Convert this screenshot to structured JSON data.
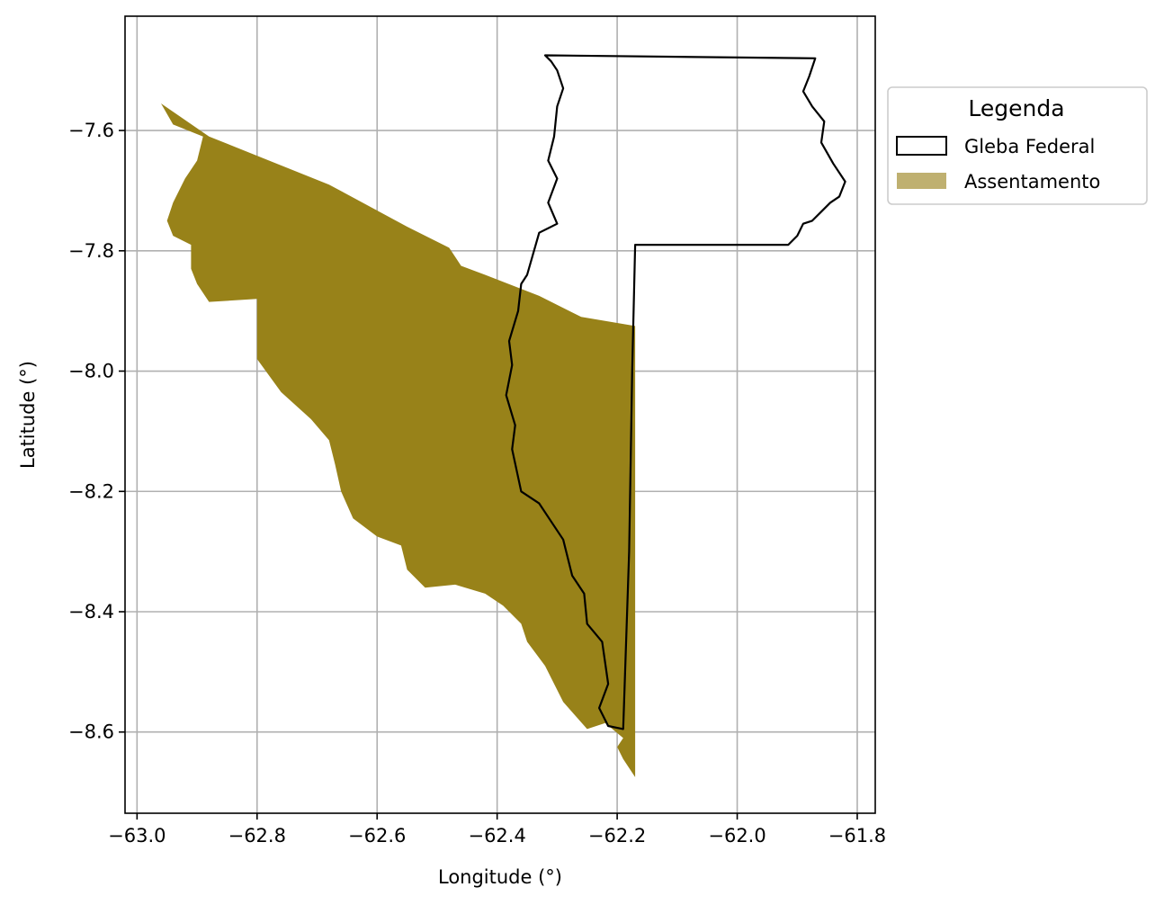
{
  "chart_data": {
    "type": "map",
    "xlabel": "Longitude (°)",
    "ylabel": "Latitude (°)",
    "xlim": [
      -63.02,
      -61.77
    ],
    "ylim": [
      -8.735,
      -7.41
    ],
    "grid": true,
    "xticks": [
      -63.0,
      -62.8,
      -62.6,
      -62.4,
      -62.2,
      -62.0,
      -61.8
    ],
    "xtick_labels": [
      "−63.0",
      "−62.8",
      "−62.6",
      "−62.4",
      "−62.2",
      "−62.0",
      "−61.8"
    ],
    "yticks": [
      -7.6,
      -7.8,
      -8.0,
      -8.2,
      -8.4,
      -8.6
    ],
    "ytick_labels": [
      "−7.6",
      "−7.8",
      "−8.0",
      "−8.2",
      "−8.4",
      "−8.6"
    ],
    "legend": {
      "title": "Legenda",
      "placement": "outside upper right",
      "entries": [
        {
          "label": "Gleba Federal",
          "style": "outline",
          "color": "#000000"
        },
        {
          "label": "Assentamento",
          "style": "fill",
          "color": "#bfb070"
        }
      ]
    },
    "layers": [
      {
        "name": "Assentamento",
        "fill": "#988219",
        "polygon": [
          [
            -62.96,
            -7.555
          ],
          [
            -62.88,
            -7.61
          ],
          [
            -62.78,
            -7.65
          ],
          [
            -62.68,
            -7.69
          ],
          [
            -62.55,
            -7.76
          ],
          [
            -62.48,
            -7.795
          ],
          [
            -62.46,
            -7.825
          ],
          [
            -62.42,
            -7.84
          ],
          [
            -62.33,
            -7.875
          ],
          [
            -62.26,
            -7.91
          ],
          [
            -62.17,
            -7.925
          ],
          [
            -62.17,
            -8.675
          ],
          [
            -62.19,
            -8.645
          ],
          [
            -62.2,
            -8.625
          ],
          [
            -62.19,
            -8.61
          ],
          [
            -62.22,
            -8.585
          ],
          [
            -62.25,
            -8.595
          ],
          [
            -62.29,
            -8.55
          ],
          [
            -62.32,
            -8.49
          ],
          [
            -62.35,
            -8.45
          ],
          [
            -62.36,
            -8.42
          ],
          [
            -62.39,
            -8.39
          ],
          [
            -62.42,
            -8.37
          ],
          [
            -62.47,
            -8.355
          ],
          [
            -62.52,
            -8.36
          ],
          [
            -62.55,
            -8.33
          ],
          [
            -62.56,
            -8.29
          ],
          [
            -62.6,
            -8.275
          ],
          [
            -62.64,
            -8.245
          ],
          [
            -62.66,
            -8.2
          ],
          [
            -62.67,
            -8.155
          ],
          [
            -62.68,
            -8.115
          ],
          [
            -62.71,
            -8.08
          ],
          [
            -62.76,
            -8.035
          ],
          [
            -62.8,
            -7.98
          ],
          [
            -62.8,
            -7.88
          ],
          [
            -62.88,
            -7.885
          ],
          [
            -62.9,
            -7.855
          ],
          [
            -62.91,
            -7.83
          ],
          [
            -62.91,
            -7.79
          ],
          [
            -62.94,
            -7.775
          ],
          [
            -62.95,
            -7.75
          ],
          [
            -62.94,
            -7.72
          ],
          [
            -62.92,
            -7.68
          ],
          [
            -62.9,
            -7.65
          ],
          [
            -62.89,
            -7.61
          ],
          [
            -62.94,
            -7.59
          ]
        ]
      },
      {
        "name": "Gleba Federal",
        "stroke": "#000000",
        "polygon": [
          [
            -62.32,
            -7.475
          ],
          [
            -61.87,
            -7.48
          ],
          [
            -61.88,
            -7.51
          ],
          [
            -61.89,
            -7.535
          ],
          [
            -61.875,
            -7.56
          ],
          [
            -61.855,
            -7.585
          ],
          [
            -61.86,
            -7.62
          ],
          [
            -61.84,
            -7.655
          ],
          [
            -61.82,
            -7.685
          ],
          [
            -61.83,
            -7.71
          ],
          [
            -61.845,
            -7.72
          ],
          [
            -61.86,
            -7.735
          ],
          [
            -61.875,
            -7.75
          ],
          [
            -61.89,
            -7.755
          ],
          [
            -61.9,
            -7.775
          ],
          [
            -61.915,
            -7.79
          ],
          [
            -62.17,
            -7.79
          ],
          [
            -62.175,
            -8.0
          ],
          [
            -62.18,
            -8.3
          ],
          [
            -62.19,
            -8.595
          ],
          [
            -62.215,
            -8.59
          ],
          [
            -62.23,
            -8.56
          ],
          [
            -62.215,
            -8.52
          ],
          [
            -62.225,
            -8.45
          ],
          [
            -62.25,
            -8.42
          ],
          [
            -62.255,
            -8.37
          ],
          [
            -62.275,
            -8.34
          ],
          [
            -62.29,
            -8.28
          ],
          [
            -62.31,
            -8.25
          ],
          [
            -62.33,
            -8.22
          ],
          [
            -62.36,
            -8.2
          ],
          [
            -62.375,
            -8.13
          ],
          [
            -62.37,
            -8.09
          ],
          [
            -62.385,
            -8.04
          ],
          [
            -62.375,
            -7.99
          ],
          [
            -62.38,
            -7.95
          ],
          [
            -62.365,
            -7.9
          ],
          [
            -62.36,
            -7.855
          ],
          [
            -62.35,
            -7.84
          ],
          [
            -62.34,
            -7.805
          ],
          [
            -62.33,
            -7.77
          ],
          [
            -62.3,
            -7.755
          ],
          [
            -62.315,
            -7.72
          ],
          [
            -62.3,
            -7.68
          ],
          [
            -62.315,
            -7.65
          ],
          [
            -62.305,
            -7.61
          ],
          [
            -62.3,
            -7.56
          ],
          [
            -62.29,
            -7.53
          ],
          [
            -62.3,
            -7.5
          ],
          [
            -62.31,
            -7.485
          ]
        ]
      }
    ]
  }
}
